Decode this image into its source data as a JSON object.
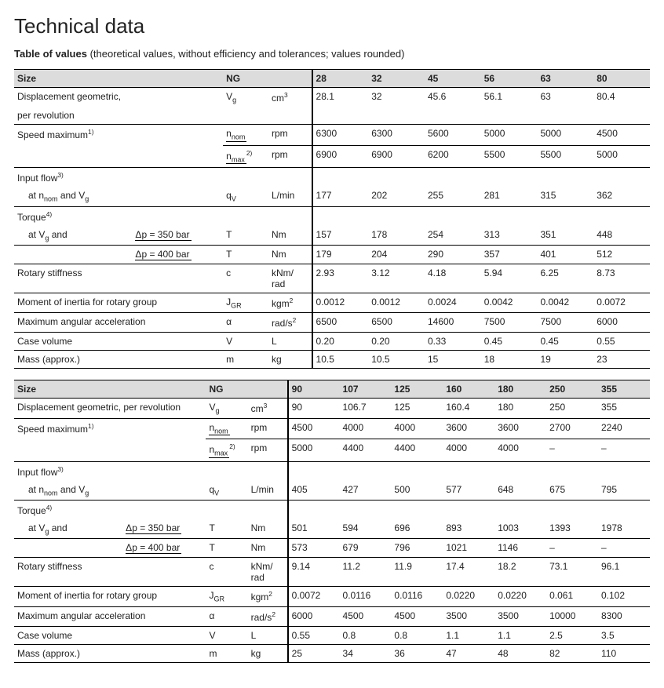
{
  "title": "Technical data",
  "subtitle_bold": "Table of values",
  "subtitle_rest": " (theoretical values, without efficiency and tolerances; values rounded)",
  "labels": {
    "size": "Size",
    "ng": "NG",
    "disp_a": "Displacement geometric,",
    "disp_b": "per revolution",
    "disp_one": "Displacement geometric, per revolution",
    "speed": "Speed maximum",
    "inflow": "Input flow",
    "at_nnom_vg": "at n",
    "torque": "Torque",
    "at_vg_and": "at V",
    "dp350": "Δp = 350 bar",
    "dp400": "Δp = 400 bar",
    "rotstiff": "Rotary stiffness",
    "moment": "Moment of inertia for rotary group",
    "maxang": "Maximum angular acceleration",
    "casevol": "Case volume",
    "mass": "Mass (approx.)"
  },
  "units": {
    "cm3": "cm",
    "rpm": "rpm",
    "lmin": "L/min",
    "nm": "Nm",
    "knmrad1": "kNm/",
    "knmrad2": "rad",
    "kgm2": "kgm",
    "rads2": "rad/s",
    "l": "L",
    "kg": "kg"
  },
  "syms": {
    "vg": "V",
    "nnom": "n",
    "nmax": "n",
    "qv": "q",
    "t": "T",
    "c": "c",
    "jgr": "J",
    "alpha": "α",
    "v": "V",
    "m": "m"
  },
  "t1": {
    "sizes": [
      "28",
      "32",
      "45",
      "56",
      "63",
      "80"
    ],
    "disp": [
      "28.1",
      "32",
      "45.6",
      "56.1",
      "63",
      "80.4"
    ],
    "nnom": [
      "6300",
      "6300",
      "5600",
      "5000",
      "5000",
      "4500"
    ],
    "nmax": [
      "6900",
      "6900",
      "6200",
      "5500",
      "5500",
      "5000"
    ],
    "flow": [
      "177",
      "202",
      "255",
      "281",
      "315",
      "362"
    ],
    "t350": [
      "157",
      "178",
      "254",
      "313",
      "351",
      "448"
    ],
    "t400": [
      "179",
      "204",
      "290",
      "357",
      "401",
      "512"
    ],
    "stiff": [
      "2.93",
      "3.12",
      "4.18",
      "5.94",
      "6.25",
      "8.73"
    ],
    "moment": [
      "0.0012",
      "0.0012",
      "0.0024",
      "0.0042",
      "0.0042",
      "0.0072"
    ],
    "maxang": [
      "6500",
      "6500",
      "14600",
      "7500",
      "7500",
      "6000"
    ],
    "case": [
      "0.20",
      "0.20",
      "0.33",
      "0.45",
      "0.45",
      "0.55"
    ],
    "mass": [
      "10.5",
      "10.5",
      "15",
      "18",
      "19",
      "23"
    ]
  },
  "t2": {
    "sizes": [
      "90",
      "107",
      "125",
      "160",
      "180",
      "250",
      "355"
    ],
    "disp": [
      "90",
      "106.7",
      "125",
      "160.4",
      "180",
      "250",
      "355"
    ],
    "nnom": [
      "4500",
      "4000",
      "4000",
      "3600",
      "3600",
      "2700",
      "2240"
    ],
    "nmax": [
      "5000",
      "4400",
      "4400",
      "4000",
      "4000",
      "–",
      "–"
    ],
    "flow": [
      "405",
      "427",
      "500",
      "577",
      "648",
      "675",
      "795"
    ],
    "t350": [
      "501",
      "594",
      "696",
      "893",
      "1003",
      "1393",
      "1978"
    ],
    "t400": [
      "573",
      "679",
      "796",
      "1021",
      "1146",
      "–",
      "–"
    ],
    "stiff": [
      "9.14",
      "11.2",
      "11.9",
      "17.4",
      "18.2",
      "73.1",
      "96.1"
    ],
    "moment": [
      "0.0072",
      "0.0116",
      "0.0116",
      "0.0220",
      "0.0220",
      "0.061",
      "0.102"
    ],
    "maxang": [
      "6000",
      "4500",
      "4500",
      "3500",
      "3500",
      "10000",
      "8300"
    ],
    "case": [
      "0.55",
      "0.8",
      "0.8",
      "1.1",
      "1.1",
      "2.5",
      "3.5"
    ],
    "mass": [
      "25",
      "34",
      "36",
      "47",
      "48",
      "82",
      "110"
    ]
  }
}
